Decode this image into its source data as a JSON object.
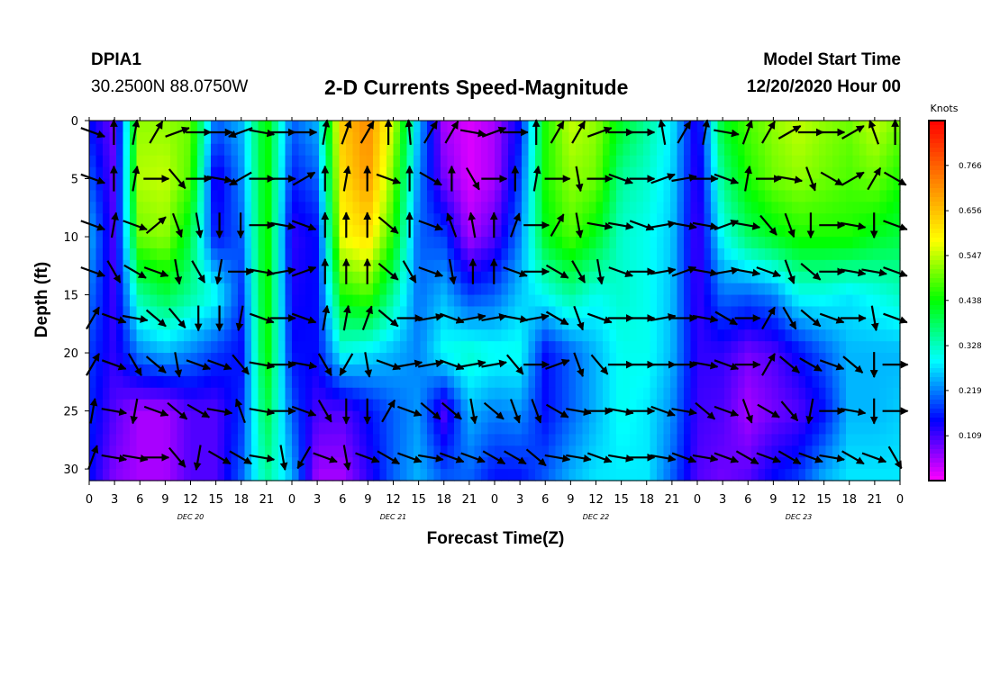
{
  "header": {
    "station": "DPIA1",
    "coords": "30.2500N 88.0750W",
    "title": "2-D Currents Speed-Magnitude",
    "model_start_label": "Model Start Time",
    "model_start_value": "12/20/2020 Hour 00"
  },
  "chart_data": {
    "type": "heatmap",
    "title": "2-D Currents Speed-Magnitude",
    "xlabel": "Forecast Time(Z)",
    "ylabel": "Depth (ft)",
    "x_tick_labels": [
      "0",
      "3",
      "6",
      "9",
      "12",
      "15",
      "18",
      "21",
      "0",
      "3",
      "6",
      "9",
      "12",
      "15",
      "18",
      "21",
      "0",
      "3",
      "6",
      "9",
      "12",
      "15",
      "18",
      "21",
      "0",
      "3",
      "6",
      "9",
      "12",
      "15",
      "18",
      "21",
      "0"
    ],
    "x_day_labels": [
      "DEC 20",
      "DEC 21",
      "DEC 22",
      "DEC 23"
    ],
    "xlim_hours": [
      0,
      96
    ],
    "y_ticks": [
      0,
      5,
      10,
      15,
      20,
      25,
      30
    ],
    "ylim": [
      31,
      0
    ],
    "colorbar": {
      "label": "Knots",
      "tick_labels": [
        "0.109",
        "0.219",
        "0.328",
        "0.438",
        "0.547",
        "0.656",
        "0.766"
      ],
      "range": [
        0,
        0.875
      ],
      "colors": [
        "#ff00ff",
        "#0000ff",
        "#00ffff",
        "#00ff00",
        "#ffff00",
        "#ff8000",
        "#ff0000"
      ]
    },
    "speed_profiles": [
      {
        "hour": 0,
        "depths": [
          0,
          10,
          20,
          31
        ],
        "speed": [
          0.15,
          0.25,
          0.18,
          0.15
        ]
      },
      {
        "hour": 3,
        "depths": [
          0,
          10,
          20,
          31
        ],
        "speed": [
          0.08,
          0.1,
          0.12,
          0.07
        ]
      },
      {
        "hour": 6,
        "depths": [
          0,
          5,
          10,
          15,
          20,
          25,
          31
        ],
        "speed": [
          0.52,
          0.54,
          0.5,
          0.35,
          0.22,
          0.05,
          0.05
        ]
      },
      {
        "hour": 9,
        "depths": [
          0,
          5,
          10,
          15,
          20,
          25,
          31
        ],
        "speed": [
          0.52,
          0.55,
          0.52,
          0.4,
          0.25,
          0.05,
          0.05
        ]
      },
      {
        "hour": 12,
        "depths": [
          0,
          5,
          10,
          15,
          20,
          25,
          31
        ],
        "speed": [
          0.5,
          0.48,
          0.4,
          0.35,
          0.22,
          0.1,
          0.1
        ]
      },
      {
        "hour": 15,
        "depths": [
          0,
          5,
          10,
          15,
          20,
          25,
          31
        ],
        "speed": [
          0.2,
          0.12,
          0.15,
          0.3,
          0.18,
          0.1,
          0.1
        ]
      },
      {
        "hour": 18,
        "depths": [
          0,
          10,
          20,
          31
        ],
        "speed": [
          0.25,
          0.2,
          0.15,
          0.2
        ]
      },
      {
        "hour": 21,
        "depths": [
          0,
          10,
          20,
          31
        ],
        "speed": [
          0.45,
          0.46,
          0.45,
          0.35
        ]
      },
      {
        "hour": 24,
        "depths": [
          0,
          10,
          20,
          31
        ],
        "speed": [
          0.2,
          0.12,
          0.15,
          0.25
        ]
      },
      {
        "hour": 27,
        "depths": [
          0,
          10,
          20,
          31
        ],
        "speed": [
          0.25,
          0.15,
          0.15,
          0.05
        ]
      },
      {
        "hour": 30,
        "depths": [
          0,
          5,
          10,
          15,
          20,
          25,
          31
        ],
        "speed": [
          0.65,
          0.62,
          0.58,
          0.45,
          0.3,
          0.1,
          0.05
        ]
      },
      {
        "hour": 33,
        "depths": [
          0,
          5,
          10,
          15,
          20,
          25,
          31
        ],
        "speed": [
          0.72,
          0.7,
          0.62,
          0.48,
          0.28,
          0.15,
          0.12
        ]
      },
      {
        "hour": 36,
        "depths": [
          0,
          5,
          10,
          15,
          20,
          25,
          31
        ],
        "speed": [
          0.55,
          0.5,
          0.45,
          0.35,
          0.25,
          0.2,
          0.2
        ]
      },
      {
        "hour": 39,
        "depths": [
          0,
          10,
          20,
          31
        ],
        "speed": [
          0.25,
          0.2,
          0.22,
          0.25
        ]
      },
      {
        "hour": 42,
        "depths": [
          0,
          5,
          10,
          15,
          20,
          25,
          31
        ],
        "speed": [
          0.05,
          0.08,
          0.18,
          0.25,
          0.3,
          0.1,
          0.2
        ]
      },
      {
        "hour": 45,
        "depths": [
          0,
          5,
          10,
          15,
          20,
          25,
          31
        ],
        "speed": [
          0.02,
          0.02,
          0.05,
          0.18,
          0.32,
          0.25,
          0.2
        ]
      },
      {
        "hour": 48,
        "depths": [
          0,
          5,
          10,
          15,
          20,
          25,
          31
        ],
        "speed": [
          0.05,
          0.05,
          0.1,
          0.2,
          0.3,
          0.22,
          0.15
        ]
      },
      {
        "hour": 51,
        "depths": [
          0,
          10,
          20,
          31
        ],
        "speed": [
          0.15,
          0.22,
          0.3,
          0.15
        ]
      },
      {
        "hour": 54,
        "depths": [
          0,
          5,
          10,
          15,
          20,
          25,
          31
        ],
        "speed": [
          0.45,
          0.45,
          0.42,
          0.3,
          0.15,
          0.15,
          0.2
        ]
      },
      {
        "hour": 57,
        "depths": [
          0,
          5,
          10,
          15,
          20,
          25,
          31
        ],
        "speed": [
          0.55,
          0.52,
          0.48,
          0.35,
          0.2,
          0.2,
          0.25
        ]
      },
      {
        "hour": 60,
        "depths": [
          0,
          5,
          10,
          15,
          20,
          25,
          31
        ],
        "speed": [
          0.52,
          0.5,
          0.42,
          0.3,
          0.25,
          0.25,
          0.28
        ]
      },
      {
        "hour": 63,
        "depths": [
          0,
          5,
          10,
          15,
          20,
          25,
          31
        ],
        "speed": [
          0.42,
          0.35,
          0.32,
          0.32,
          0.3,
          0.3,
          0.28
        ]
      },
      {
        "hour": 66,
        "depths": [
          0,
          5,
          10,
          15,
          20,
          25,
          31
        ],
        "speed": [
          0.35,
          0.32,
          0.3,
          0.3,
          0.3,
          0.28,
          0.28
        ]
      },
      {
        "hour": 69,
        "depths": [
          0,
          10,
          20,
          31
        ],
        "speed": [
          0.28,
          0.26,
          0.25,
          0.2
        ]
      },
      {
        "hour": 72,
        "depths": [
          0,
          10,
          20,
          31
        ],
        "speed": [
          0.12,
          0.1,
          0.12,
          0.1
        ]
      },
      {
        "hour": 75,
        "depths": [
          0,
          10,
          20,
          31
        ],
        "speed": [
          0.42,
          0.3,
          0.12,
          0.08
        ]
      },
      {
        "hour": 78,
        "depths": [
          0,
          5,
          10,
          15,
          20,
          25,
          31
        ],
        "speed": [
          0.48,
          0.45,
          0.38,
          0.2,
          0.08,
          0.05,
          0.1
        ]
      },
      {
        "hour": 81,
        "depths": [
          0,
          5,
          10,
          15,
          20,
          25,
          31
        ],
        "speed": [
          0.52,
          0.5,
          0.42,
          0.22,
          0.1,
          0.08,
          0.15
        ]
      },
      {
        "hour": 84,
        "depths": [
          0,
          5,
          10,
          15,
          20,
          25,
          31
        ],
        "speed": [
          0.55,
          0.52,
          0.45,
          0.3,
          0.15,
          0.1,
          0.18
        ]
      },
      {
        "hour": 87,
        "depths": [
          0,
          5,
          10,
          15,
          20,
          25,
          31
        ],
        "speed": [
          0.52,
          0.5,
          0.45,
          0.3,
          0.2,
          0.15,
          0.25
        ]
      },
      {
        "hour": 90,
        "depths": [
          0,
          5,
          10,
          15,
          20,
          25,
          31
        ],
        "speed": [
          0.5,
          0.48,
          0.45,
          0.28,
          0.25,
          0.25,
          0.28
        ]
      },
      {
        "hour": 93,
        "depths": [
          0,
          5,
          10,
          15,
          20,
          25,
          31
        ],
        "speed": [
          0.55,
          0.5,
          0.42,
          0.3,
          0.25,
          0.25,
          0.28
        ]
      },
      {
        "hour": 96,
        "depths": [
          0,
          10,
          20,
          31
        ],
        "speed": [
          0.5,
          0.4,
          0.25,
          0.28
        ]
      }
    ],
    "arrow_depths": [
      0,
      4,
      8,
      12,
      16,
      20,
      24,
      28
    ],
    "arrow_hours": [
      0,
      2.5,
      5,
      7.5,
      10,
      12.5,
      15,
      17.5,
      20,
      22.5,
      25,
      27.5,
      30,
      32.5,
      35,
      37.5,
      40,
      42.5,
      45,
      47.5,
      50,
      52.5,
      55,
      57.5,
      60,
      62.5,
      65,
      67.5,
      70,
      72.5,
      75,
      77.5,
      80,
      82.5,
      85,
      87.5,
      90,
      92.5,
      95
    ],
    "arrow_directions_deg": [
      [
        20,
        -90,
        -80,
        -60,
        -20,
        0,
        0,
        160,
        10,
        0,
        0,
        -80,
        -70,
        -60,
        -90,
        -95,
        -60,
        -60,
        10,
        -20,
        0,
        -90,
        -60,
        -60,
        -20,
        0,
        0,
        -100,
        -60,
        -80,
        10,
        -70,
        -60,
        -30,
        0,
        0,
        -30,
        -110,
        -90
      ],
      [
        20,
        -90,
        -80,
        0,
        50,
        0,
        10,
        150,
        0,
        0,
        -30,
        -90,
        -80,
        -90,
        20,
        -90,
        30,
        -90,
        60,
        0,
        -90,
        -80,
        0,
        80,
        0,
        20,
        0,
        -20,
        -10,
        0,
        20,
        -80,
        0,
        10,
        70,
        30,
        -30,
        -60,
        30
      ],
      [
        20,
        -80,
        20,
        -40,
        70,
        80,
        90,
        90,
        0,
        10,
        20,
        -90,
        -90,
        -90,
        40,
        -90,
        20,
        -110,
        -100,
        -90,
        -70,
        0,
        -60,
        80,
        10,
        10,
        20,
        -10,
        10,
        10,
        -20,
        10,
        50,
        70,
        90,
        0,
        10,
        90,
        20
      ],
      [
        20,
        60,
        30,
        20,
        80,
        60,
        100,
        0,
        10,
        -10,
        -20,
        -90,
        -90,
        -90,
        40,
        60,
        20,
        80,
        -90,
        -90,
        20,
        0,
        30,
        60,
        80,
        20,
        0,
        -10,
        -20,
        10,
        -10,
        10,
        20,
        70,
        40,
        0,
        10,
        10,
        20
      ],
      [
        -60,
        20,
        10,
        40,
        50,
        90,
        90,
        100,
        20,
        0,
        20,
        -80,
        -80,
        -70,
        40,
        0,
        -10,
        20,
        -10,
        -10,
        10,
        -10,
        30,
        70,
        20,
        0,
        0,
        -10,
        0,
        10,
        30,
        0,
        -60,
        60,
        40,
        20,
        0,
        80,
        20
      ],
      [
        -60,
        20,
        60,
        40,
        80,
        20,
        20,
        50,
        10,
        0,
        10,
        60,
        120,
        80,
        20,
        -10,
        -10,
        20,
        -10,
        -10,
        50,
        0,
        -20,
        70,
        50,
        0,
        0,
        0,
        0,
        10,
        20,
        0,
        -60,
        40,
        30,
        20,
        40,
        90,
        0
      ],
      [
        -80,
        10,
        100,
        20,
        40,
        30,
        10,
        -110,
        10,
        0,
        20,
        60,
        90,
        90,
        -60,
        20,
        40,
        40,
        80,
        40,
        70,
        70,
        30,
        10,
        0,
        10,
        0,
        20,
        10,
        40,
        20,
        70,
        30,
        50,
        100,
        0,
        10,
        90,
        0
      ],
      [
        -70,
        10,
        10,
        0,
        50,
        100,
        30,
        30,
        10,
        80,
        120,
        20,
        80,
        20,
        30,
        20,
        10,
        20,
        20,
        30,
        30,
        40,
        10,
        10,
        20,
        10,
        0,
        10,
        20,
        10,
        20,
        30,
        20,
        30,
        20,
        10,
        30,
        20,
        60
      ]
    ]
  }
}
